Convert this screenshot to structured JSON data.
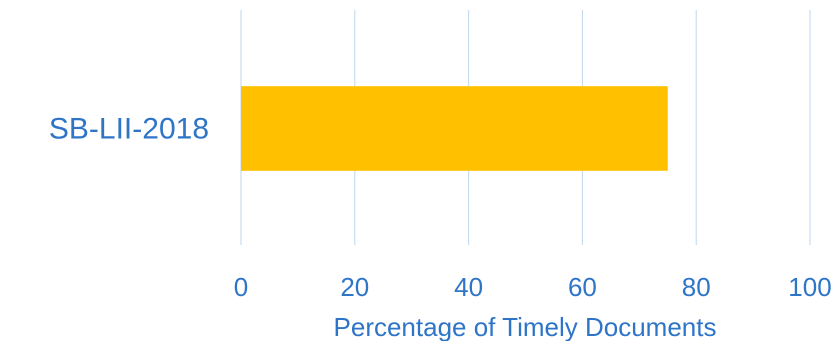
{
  "chart_data": {
    "type": "bar",
    "orientation": "horizontal",
    "categories": [
      "SB-LII-2018"
    ],
    "values": [
      75
    ],
    "title": "",
    "xlabel": "Percentage of Timely Documents",
    "ylabel": "",
    "xlim": [
      0,
      100
    ],
    "xticks": [
      "0",
      "20",
      "40",
      "60",
      "80",
      "100"
    ],
    "grid": "vertical",
    "legend": "none",
    "colors": {
      "bar": "#FFC000",
      "grid": "#BDD7EE",
      "text": "#2E75C8"
    }
  }
}
